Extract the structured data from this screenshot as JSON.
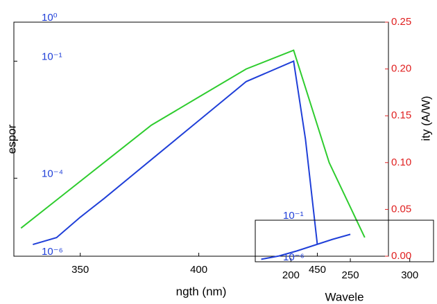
{
  "chart_data": [
    {
      "type": "line",
      "x_label": "ngth (nm)",
      "y_label": "espor",
      "y2_label": "ity (A/W)",
      "xlim": [
        322,
        480
      ],
      "xticks": [
        350,
        400,
        450
      ],
      "ylim": [
        1e-06,
        1
      ],
      "y_scale": "log",
      "yticks": [
        {
          "value": 1,
          "label": "10⁰"
        },
        {
          "value": 0.1,
          "label": "10⁻¹"
        },
        {
          "value": 0.0001,
          "label": "10⁻⁴"
        },
        {
          "value": 1e-06,
          "label": "10⁻⁶"
        }
      ],
      "y2lim": [
        0,
        0.25
      ],
      "y2ticks": [
        {
          "value": 0,
          "label": "0.00"
        },
        {
          "value": 0.05,
          "label": "0.05"
        },
        {
          "value": 0.1,
          "label": "0.10"
        },
        {
          "value": 0.15,
          "label": "0.15"
        },
        {
          "value": 0.2,
          "label": "0.20"
        },
        {
          "value": 0.25,
          "label": "0.25"
        }
      ],
      "series": [
        {
          "color": "#1f3fd8",
          "x": [
            330,
            340,
            350,
            360,
            380,
            400,
            420,
            440,
            445,
            450
          ],
          "values": [
            2e-06,
            3e-06,
            1e-05,
            3e-05,
            0.0003,
            0.003,
            0.03,
            0.1,
            0.001,
            2e-06
          ]
        },
        {
          "color": "#2ecc2e",
          "axis": "y2",
          "x": [
            325,
            340,
            360,
            380,
            400,
            420,
            440,
            455,
            470
          ],
          "values": [
            0.03,
            0.06,
            0.1,
            0.14,
            0.17,
            0.2,
            0.22,
            0.1,
            0.02
          ]
        }
      ]
    },
    {
      "type": "line",
      "x_label": "Wavele",
      "xlim": [
        170,
        320
      ],
      "xticks": [
        200,
        250,
        300
      ],
      "ylim": [
        1e-06,
        0.1
      ],
      "y_scale": "log",
      "yticks": [
        {
          "value": 1e-06,
          "label": "10⁻⁶"
        },
        {
          "value": 0.1,
          "label": "10⁻¹"
        }
      ],
      "series": [
        {
          "color": "#1f3fd8",
          "x": [
            175,
            190,
            205,
            220,
            235,
            250
          ],
          "values": [
            2e-06,
            5e-06,
            2e-05,
            0.0001,
            0.0005,
            0.002
          ]
        }
      ]
    }
  ]
}
